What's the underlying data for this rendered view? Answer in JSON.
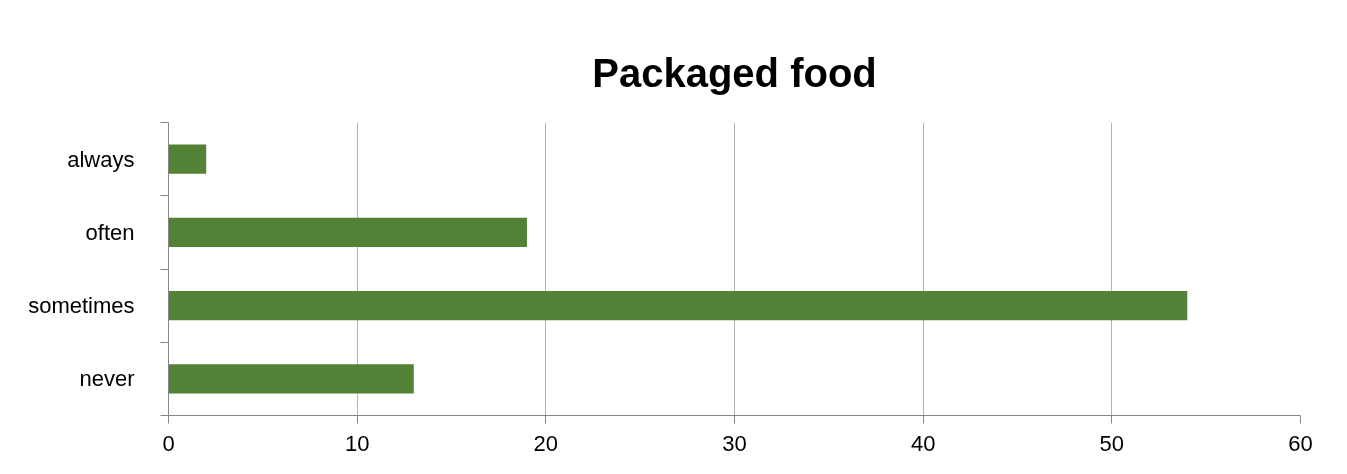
{
  "chart_data": {
    "type": "bar",
    "title": "Packaged food",
    "orientation": "horizontal",
    "categories": [
      "always",
      "often",
      "sometimes",
      "never"
    ],
    "values": [
      2,
      19,
      54,
      13
    ],
    "color": "#538135",
    "xlim": [
      0,
      60
    ],
    "xticks": [
      0,
      10,
      20,
      30,
      40,
      50,
      60
    ],
    "grid": "x"
  }
}
